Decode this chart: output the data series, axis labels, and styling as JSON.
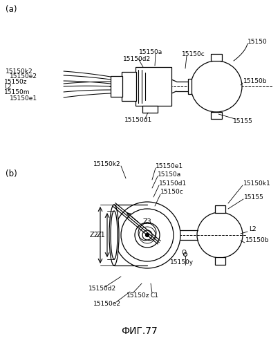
{
  "bg_color": "#ffffff",
  "line_color": "#000000",
  "title": "ФИГ.77",
  "panel_a_label": "(a)",
  "panel_b_label": "(b)",
  "fig_size": [
    4.05,
    4.99
  ],
  "dpi": 100
}
